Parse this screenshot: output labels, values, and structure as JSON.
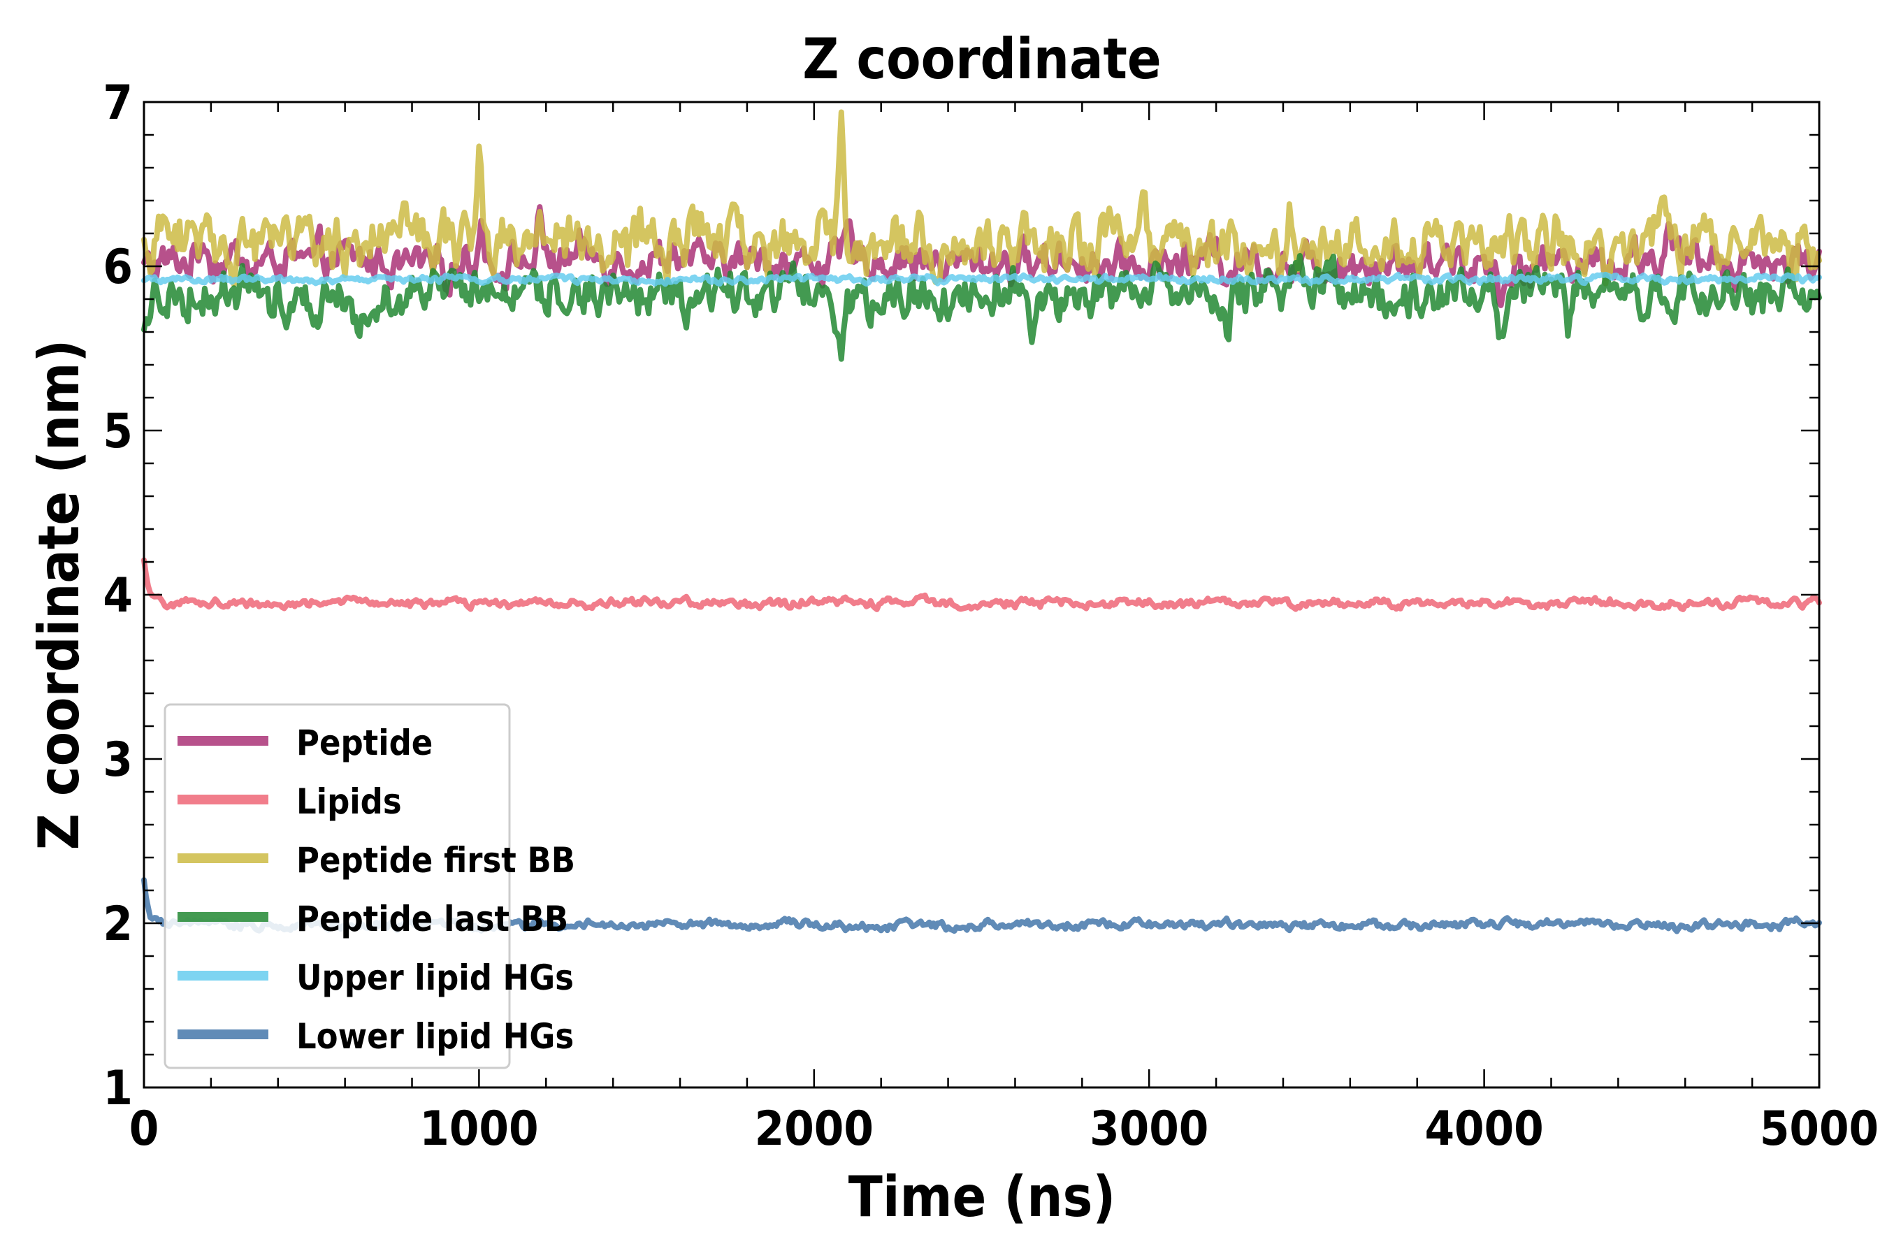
{
  "chart_data": {
    "type": "line",
    "title": "Z coordinate",
    "xlabel": "Time (ns)",
    "ylabel": "Z coordinate (nm)",
    "xlim": [
      0,
      5000
    ],
    "ylim": [
      1,
      7
    ],
    "xticks": [
      0,
      1000,
      2000,
      3000,
      4000,
      5000
    ],
    "yticks": [
      1,
      2,
      3,
      4,
      5,
      6,
      7
    ],
    "grid": false,
    "legend_position": "lower-left",
    "series": [
      {
        "name": "Peptide",
        "color": "#AA3377",
        "mean": 6.03,
        "noise": 0.09,
        "start": 6.0,
        "peaks": [
          [
            180,
            6.18
          ],
          [
            1010,
            6.25
          ],
          [
            1180,
            6.22
          ],
          [
            2100,
            6.18
          ],
          [
            3200,
            6.18
          ],
          [
            4050,
            5.82
          ],
          [
            4550,
            6.15
          ]
        ]
      },
      {
        "name": "Lipids",
        "color": "#EE6677",
        "mean": 3.95,
        "noise": 0.02,
        "start": 4.2,
        "peaks": []
      },
      {
        "name": "Peptide first BB",
        "color": "#CCBB44",
        "mean": 6.15,
        "noise": 0.13,
        "start": 6.05,
        "peaks": [
          [
            420,
            6.55
          ],
          [
            1000,
            6.65
          ],
          [
            2080,
            6.85
          ],
          [
            2980,
            6.55
          ],
          [
            3420,
            6.45
          ],
          [
            4530,
            6.45
          ],
          [
            4950,
            6.35
          ]
        ]
      },
      {
        "name": "Peptide last BB",
        "color": "#228833",
        "mean": 5.84,
        "noise": 0.11,
        "start": 5.55,
        "peaks": [
          [
            2080,
            5.48
          ],
          [
            4250,
            5.48
          ],
          [
            4050,
            5.6
          ],
          [
            2650,
            5.62
          ],
          [
            3230,
            5.62
          ]
        ]
      },
      {
        "name": "Upper lipid HGs",
        "color": "#66CCEE",
        "mean": 5.92,
        "noise": 0.015,
        "start": 5.9,
        "peaks": []
      },
      {
        "name": "Lower lipid HGs",
        "color": "#4477AA",
        "mean": 1.99,
        "noise": 0.02,
        "start": 2.28,
        "peaks": []
      }
    ]
  }
}
